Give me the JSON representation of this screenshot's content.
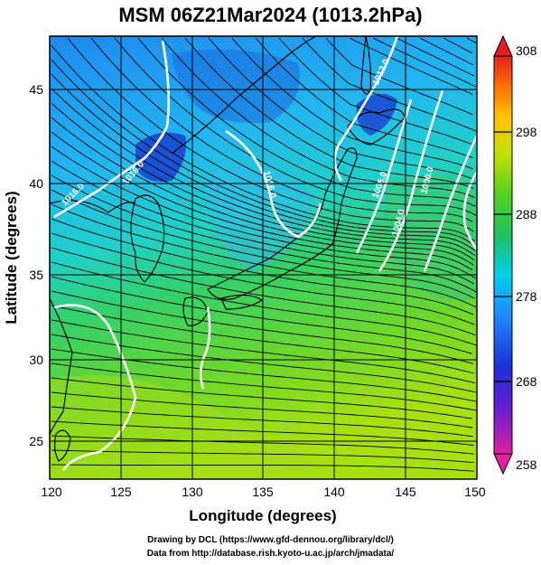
{
  "title": "MSM 06Z21Mar2024 (1013.2hPa)",
  "x_axis": {
    "label": "Longitude (degrees)",
    "ticks": [
      "120",
      "125",
      "130",
      "135",
      "140",
      "145",
      "150"
    ]
  },
  "y_axis": {
    "label": "Latitude  (degrees)",
    "ticks": [
      "25",
      "30",
      "35",
      "40",
      "45"
    ]
  },
  "colorbar": {
    "ticks": [
      "308",
      "298",
      "288",
      "278",
      "268",
      "258"
    ],
    "colors": [
      "#e0208f",
      "#7a1fd0",
      "#2030d0",
      "#1e90ff",
      "#00d8e0",
      "#20c060",
      "#5cd020",
      "#c8e000",
      "#ffc000",
      "#ff6a00",
      "#e83020"
    ]
  },
  "contour_labels": [
    "1012.0",
    "1016.0",
    "1016.0",
    "1016.0",
    "1008.0",
    "1004.0",
    "1000.0"
  ],
  "credits": {
    "line1": "Drawing by DCL (https://www.gfd-dennou.org/library/dcl/)",
    "line2": "Data from http://database.rish.kyoto-u.ac.jp/arch/jmadata/"
  }
}
